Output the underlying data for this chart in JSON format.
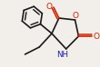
{
  "bg_color": "#f2eeea",
  "line_color": "#1a1a1a",
  "atom_colors": {
    "O": "#cc2200",
    "N": "#1a1aaa",
    "C": "#1a1a1a"
  },
  "lw": 1.2
}
